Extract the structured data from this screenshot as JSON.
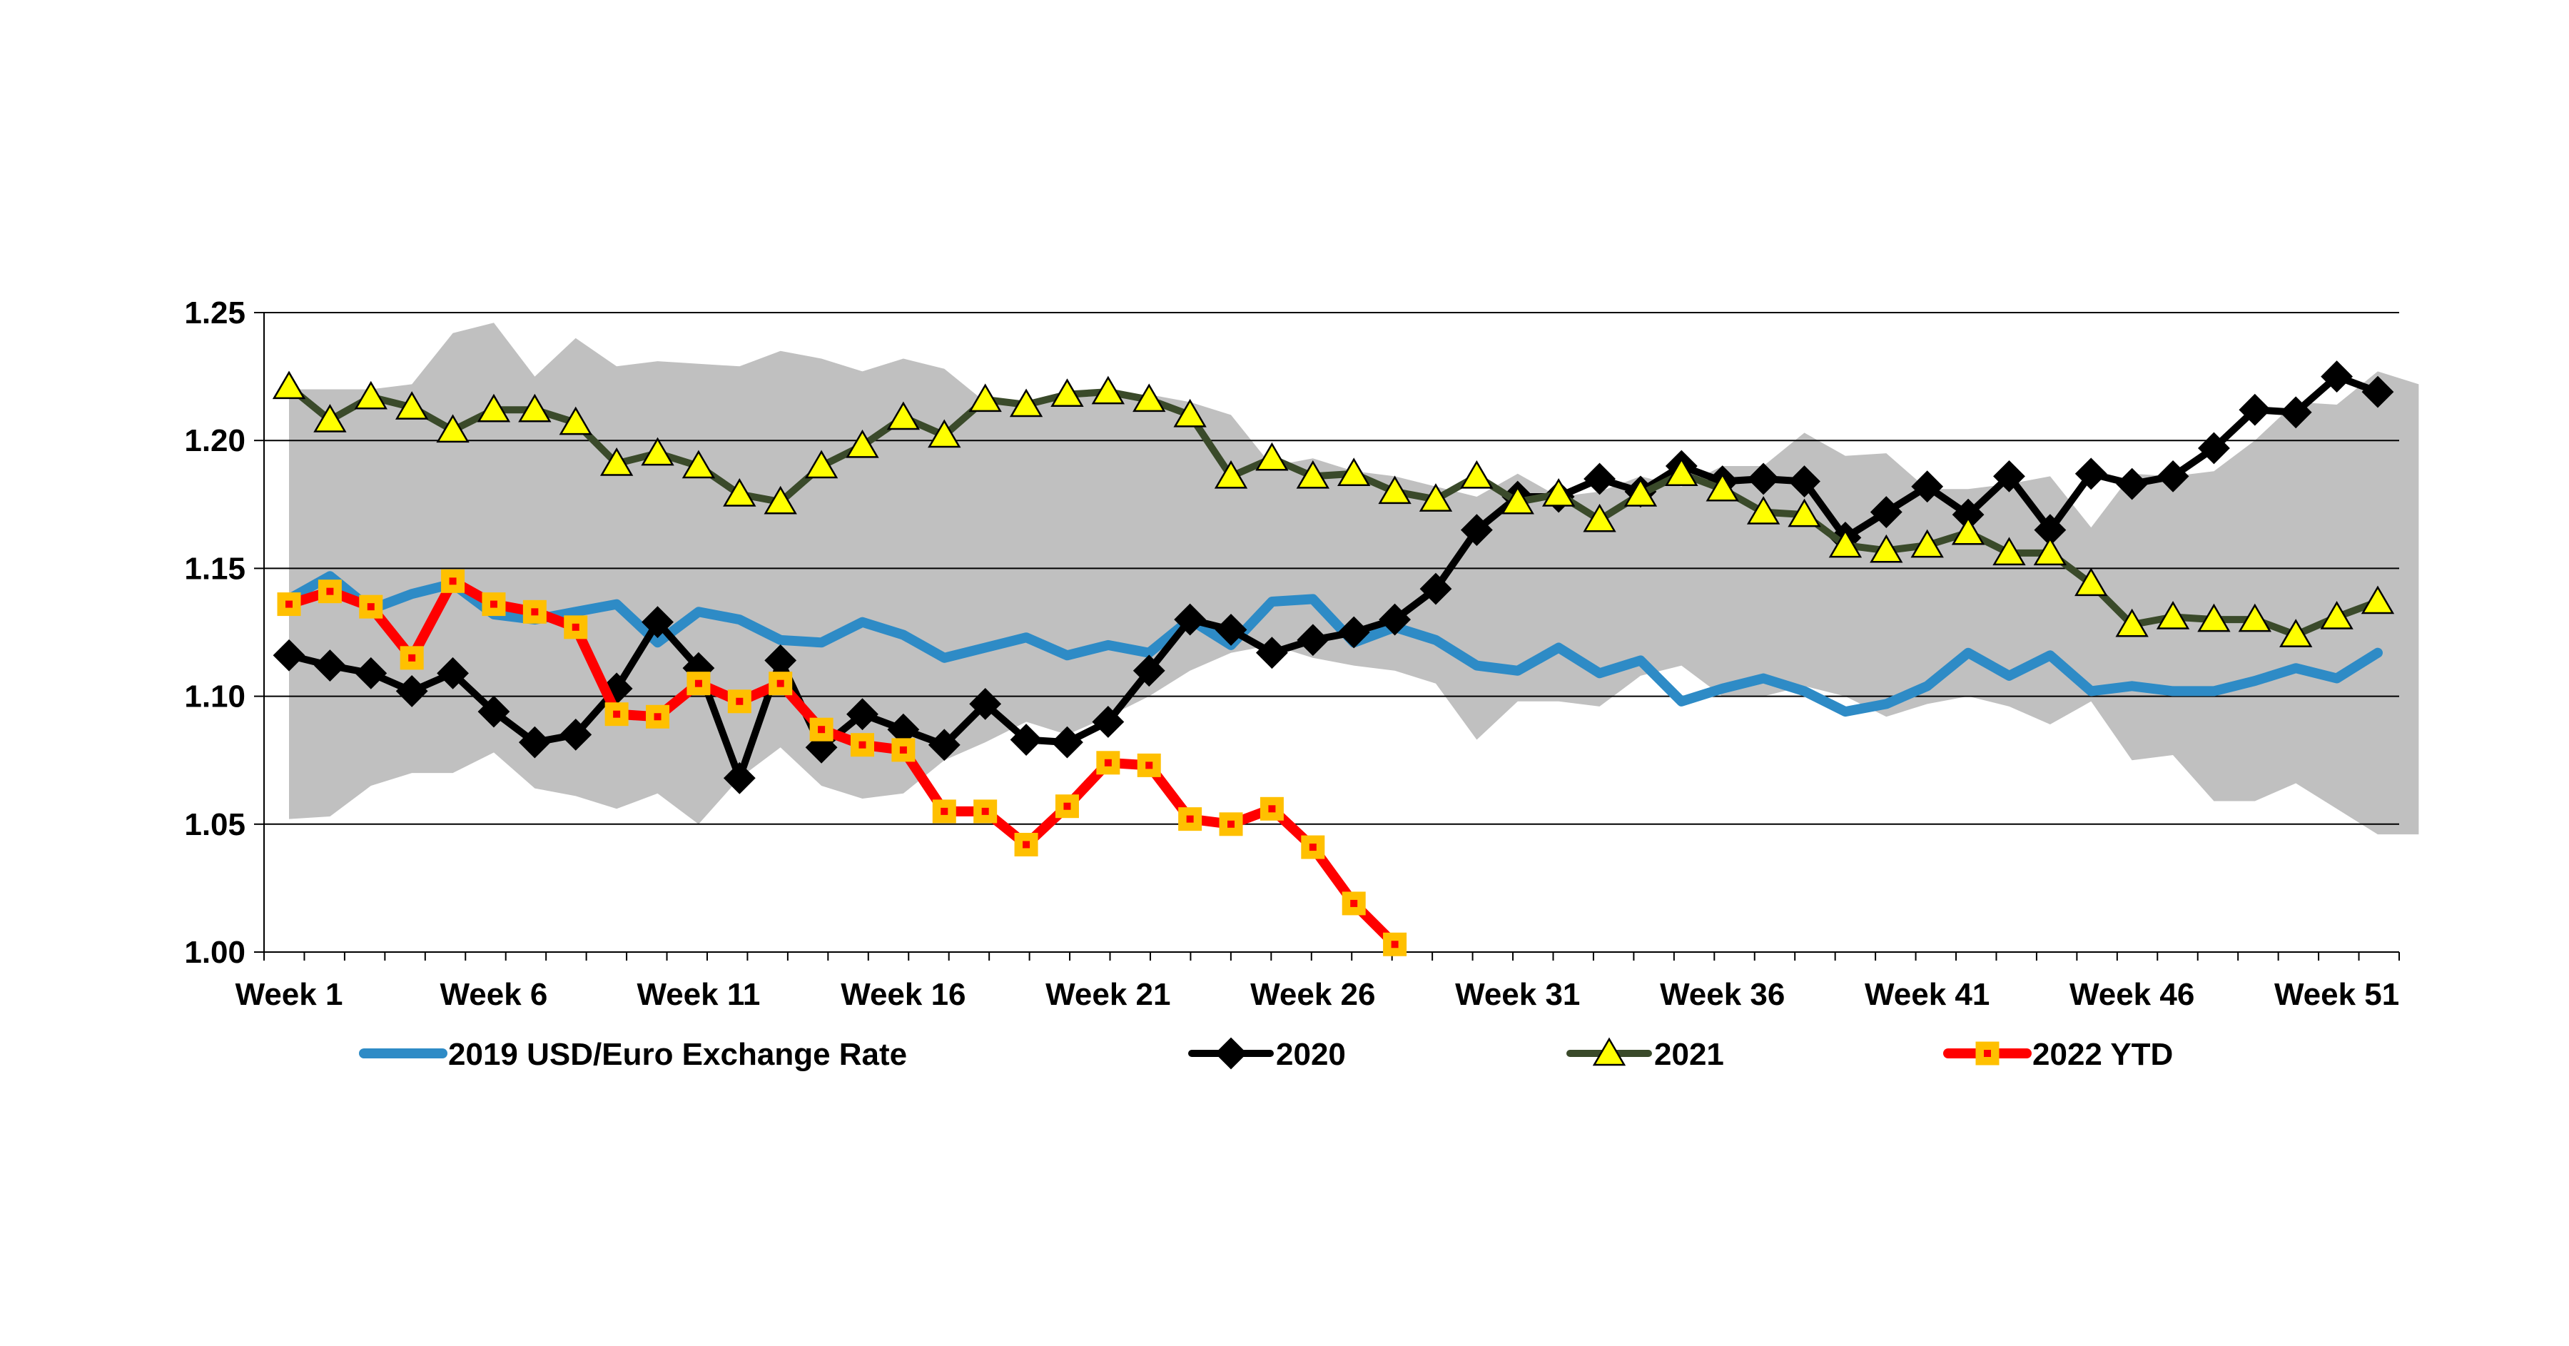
{
  "chart_data": {
    "type": "line",
    "title": "",
    "xlabel": "",
    "ylabel": "",
    "ylim": [
      1.0,
      1.25
    ],
    "y_ticks": [
      "1.00",
      "1.05",
      "1.10",
      "1.15",
      "1.20",
      "1.25"
    ],
    "x_tick_labels": [
      "Week 1",
      "Week 6",
      "Week 11",
      "Week 16",
      "Week 21",
      "Week 26",
      "Week 31",
      "Week 36",
      "Week 41",
      "Week 46",
      "Week 51"
    ],
    "weeks": 53,
    "grid": "horizontal",
    "legend_position": "bottom",
    "colors": {
      "band": "#c0c0c0",
      "s2019": "#2e8bc6",
      "s2020": "#000000",
      "s2021_line": "#3a4a2a",
      "s2021_marker": "#ffff00",
      "s2022_line": "#ff0000",
      "s2022_marker": "#ffc000"
    },
    "band": {
      "upper": [
        1.22,
        1.22,
        1.22,
        1.222,
        1.242,
        1.246,
        1.225,
        1.24,
        1.229,
        1.231,
        1.23,
        1.229,
        1.235,
        1.232,
        1.227,
        1.232,
        1.228,
        1.215,
        1.213,
        1.218,
        1.218,
        1.218,
        1.215,
        1.21,
        1.19,
        1.193,
        1.188,
        1.186,
        1.182,
        1.178,
        1.187,
        1.178,
        1.18,
        1.186,
        1.182,
        1.19,
        1.19,
        1.203,
        1.194,
        1.195,
        1.181,
        1.181,
        1.183,
        1.186,
        1.166,
        1.187,
        1.186,
        1.188,
        1.2,
        1.215,
        1.214,
        1.227,
        1.222
      ],
      "lower": [
        1.052,
        1.053,
        1.065,
        1.07,
        1.07,
        1.078,
        1.064,
        1.061,
        1.056,
        1.062,
        1.05,
        1.068,
        1.08,
        1.065,
        1.06,
        1.062,
        1.075,
        1.082,
        1.09,
        1.085,
        1.092,
        1.1,
        1.11,
        1.117,
        1.12,
        1.115,
        1.112,
        1.11,
        1.105,
        1.083,
        1.098,
        1.098,
        1.096,
        1.108,
        1.112,
        1.1,
        1.1,
        1.104,
        1.1,
        1.092,
        1.097,
        1.1,
        1.096,
        1.089,
        1.098,
        1.075,
        1.077,
        1.059,
        1.059,
        1.066,
        1.056,
        1.046,
        1.046
      ]
    },
    "series": [
      {
        "name": "2019 USD/Euro Exchange Rate",
        "marker": "none",
        "values": [
          1.138,
          1.147,
          1.134,
          1.14,
          1.144,
          1.132,
          1.13,
          1.133,
          1.136,
          1.121,
          1.133,
          1.13,
          1.122,
          1.121,
          1.129,
          1.124,
          1.115,
          1.119,
          1.123,
          1.116,
          1.12,
          1.117,
          1.13,
          1.12,
          1.137,
          1.138,
          1.121,
          1.127,
          1.122,
          1.112,
          1.11,
          1.119,
          1.109,
          1.114,
          1.098,
          1.103,
          1.107,
          1.102,
          1.094,
          1.097,
          1.104,
          1.117,
          1.108,
          1.116,
          1.102,
          1.104,
          1.102,
          1.102,
          1.106,
          1.111,
          1.107,
          1.117,
          null
        ]
      },
      {
        "name": "2020",
        "marker": "diamond",
        "values": [
          1.116,
          1.112,
          1.109,
          1.102,
          1.109,
          1.094,
          1.082,
          1.085,
          1.103,
          1.129,
          1.111,
          1.068,
          1.114,
          1.08,
          1.093,
          1.087,
          1.081,
          1.097,
          1.083,
          1.082,
          1.09,
          1.11,
          1.13,
          1.126,
          1.117,
          1.122,
          1.125,
          1.13,
          1.142,
          1.165,
          1.178,
          1.178,
          1.185,
          1.18,
          1.19,
          1.184,
          1.185,
          1.184,
          1.162,
          1.172,
          1.182,
          1.171,
          1.186,
          1.165,
          1.187,
          1.183,
          1.186,
          1.197,
          1.212,
          1.211,
          1.225,
          1.219,
          null
        ]
      },
      {
        "name": "2021",
        "marker": "triangle",
        "values": [
          1.221,
          1.208,
          1.217,
          1.213,
          1.204,
          1.212,
          1.212,
          1.207,
          1.191,
          1.195,
          1.19,
          1.179,
          1.176,
          1.19,
          1.198,
          1.209,
          1.202,
          1.216,
          1.214,
          1.218,
          1.219,
          1.216,
          1.21,
          1.186,
          1.193,
          1.186,
          1.187,
          1.18,
          1.177,
          1.186,
          1.176,
          1.179,
          1.169,
          1.179,
          1.187,
          1.181,
          1.172,
          1.171,
          1.159,
          1.157,
          1.159,
          1.164,
          1.156,
          1.156,
          1.144,
          1.128,
          1.131,
          1.13,
          1.13,
          1.124,
          1.131,
          1.137,
          null
        ]
      },
      {
        "name": "2022 YTD",
        "marker": "square",
        "values": [
          1.136,
          1.141,
          1.135,
          1.115,
          1.145,
          1.136,
          1.133,
          1.127,
          1.093,
          1.092,
          1.105,
          1.098,
          1.105,
          1.087,
          1.081,
          1.079,
          1.055,
          1.055,
          1.042,
          1.057,
          1.074,
          1.073,
          1.052,
          1.05,
          1.056,
          1.041,
          1.019,
          1.003,
          null,
          null,
          null,
          null,
          null,
          null,
          null,
          null,
          null,
          null,
          null,
          null,
          null,
          null,
          null,
          null,
          null,
          null,
          null,
          null,
          null,
          null,
          null,
          null,
          null
        ]
      }
    ]
  }
}
